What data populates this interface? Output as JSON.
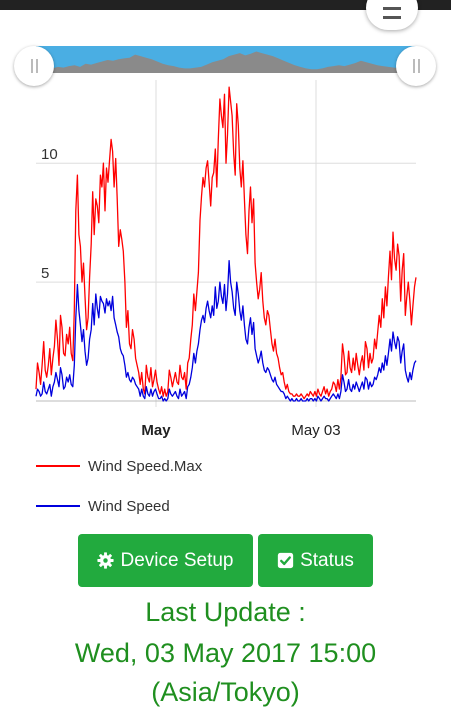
{
  "chart_data": {
    "type": "line",
    "x_tick_labels": [
      {
        "label": "May",
        "bold": true
      },
      {
        "label": "May 03",
        "bold": false
      }
    ],
    "y_tick_labels": [
      "5",
      "10"
    ],
    "ylim": [
      0,
      13.5
    ],
    "grid": true,
    "legend_placement": "bottom",
    "series": [
      {
        "name": "Wind Speed.Max",
        "color": "#ff0000",
        "values": [
          0.5,
          1.6,
          1.2,
          0.7,
          1.5,
          2.5,
          1.3,
          1.0,
          1.5,
          2.2,
          1.1,
          1.8,
          2.3,
          3.4,
          2.6,
          1.5,
          3.6,
          3.1,
          2.0,
          1.9,
          2.8,
          2.4,
          3.1,
          2.0,
          1.7,
          3.8,
          8.0,
          9.5,
          7.0,
          6.5,
          5.0,
          5.8,
          4.4,
          3.0,
          3.5,
          5.2,
          6.6,
          8.8,
          7.0,
          8.5,
          8.2,
          7.5,
          9.5,
          9.0,
          10.0,
          8.0,
          9.8,
          9.2,
          10.1,
          11.0,
          10.5,
          9.0,
          10.2,
          8.5,
          6.5,
          7.2,
          6.8,
          6.3,
          5.0,
          3.1,
          3.8,
          2.4,
          2.2,
          3.0,
          2.6,
          1.8,
          1.5,
          1.2,
          0.7,
          1.2,
          0.5,
          0.3,
          1.5,
          1.0,
          0.8,
          1.4,
          0.6,
          0.9,
          1.3,
          0.8,
          0.5,
          0.3,
          0.6,
          0.2,
          0.5,
          0.2,
          0.4,
          1.3,
          1.0,
          0.6,
          0.9,
          1.2,
          0.8,
          0.7,
          1.5,
          1.0,
          0.9,
          1.2,
          0.5,
          1.6,
          1.8,
          2.6,
          3.2,
          4.5,
          3.8,
          4.6,
          5.4,
          7.6,
          8.6,
          9.4,
          9.0,
          9.8,
          10.1,
          9.2,
          8.2,
          9.4,
          9.6,
          10.6,
          9.0,
          11.0,
          12.7,
          12.0,
          11.5,
          12.9,
          10.0,
          11.2,
          13.2,
          12.6,
          12.0,
          10.4,
          9.5,
          12.5,
          11.6,
          9.8,
          9.0,
          10.1,
          8.5,
          7.0,
          6.2,
          8.0,
          9.0,
          7.5,
          8.5,
          5.8,
          5.0,
          4.3,
          4.7,
          5.4,
          4.2,
          3.5,
          3.2,
          3.8,
          3.6,
          3.0,
          2.4,
          2.1,
          2.6,
          2.0,
          1.8,
          1.4,
          1.1,
          1.2,
          0.8,
          0.5,
          0.7,
          0.4,
          0.3,
          0.3,
          0.2,
          0.2,
          0.3,
          0.2,
          0.2,
          0.3,
          0.2,
          0.1,
          0.2,
          0.3,
          0.2,
          0.4,
          0.3,
          0.2,
          0.4,
          0.2,
          0.5,
          0.3,
          0.2,
          0.4,
          0.6,
          0.3,
          0.5,
          0.2,
          0.4,
          0.5,
          0.8,
          0.7,
          0.4,
          0.9,
          0.5,
          1.0,
          2.4,
          1.9,
          1.1,
          1.2,
          2.1,
          1.4,
          1.2,
          1.8,
          1.3,
          2.0,
          1.5,
          1.1,
          1.6,
          1.9,
          1.3,
          2.5,
          2.2,
          1.4,
          2.0,
          1.6,
          1.8,
          2.6,
          2.2,
          2.9,
          3.6,
          3.1,
          4.3,
          3.5,
          4.8,
          4.0,
          5.2,
          6.3,
          5.1,
          7.1,
          6.0,
          5.5,
          6.6,
          6.1,
          4.2,
          5.5,
          6.2,
          3.6,
          4.4,
          5.0,
          4.2,
          3.2,
          4.0,
          4.8,
          5.2
        ]
      },
      {
        "name": "Wind Speed",
        "color": "#0000dd",
        "values": [
          0.2,
          0.5,
          0.4,
          0.2,
          0.3,
          0.8,
          0.4,
          0.3,
          0.5,
          0.7,
          0.2,
          0.6,
          0.8,
          1.2,
          0.9,
          0.6,
          1.4,
          1.1,
          0.5,
          0.6,
          1.0,
          0.8,
          1.1,
          0.7,
          0.6,
          1.5,
          3.5,
          4.9,
          3.8,
          3.2,
          2.5,
          3.0,
          2.1,
          1.5,
          1.8,
          2.6,
          3.0,
          4.1,
          3.2,
          4.5,
          3.9,
          3.5,
          4.4,
          4.2,
          4.1,
          3.7,
          4.3,
          4.0,
          4.2,
          3.8,
          4.4,
          3.5,
          3.2,
          2.9,
          2.7,
          2.2,
          2.0,
          1.9,
          1.5,
          1.0,
          1.2,
          0.9,
          0.8,
          1.0,
          0.9,
          0.7,
          0.6,
          0.5,
          0.2,
          0.5,
          0.2,
          0.1,
          0.6,
          0.3,
          0.2,
          0.5,
          0.2,
          0.4,
          0.5,
          0.3,
          0.1,
          0.1,
          0.2,
          0.0,
          0.1,
          0.0,
          0.1,
          0.5,
          0.3,
          0.2,
          0.3,
          0.4,
          0.2,
          0.1,
          0.5,
          0.2,
          0.3,
          0.4,
          0.1,
          0.6,
          0.7,
          1.0,
          1.4,
          2.0,
          1.6,
          2.1,
          2.4,
          3.0,
          3.4,
          3.6,
          3.3,
          3.9,
          4.2,
          3.8,
          3.5,
          4.0,
          3.6,
          4.8,
          3.9,
          4.2,
          5.0,
          4.4,
          4.1,
          4.9,
          3.8,
          4.5,
          5.9,
          5.0,
          4.6,
          3.9,
          3.6,
          5.0,
          4.5,
          3.8,
          3.4,
          4.0,
          3.2,
          2.6,
          2.4,
          3.1,
          3.5,
          2.8,
          3.3,
          2.2,
          1.9,
          1.6,
          1.8,
          2.1,
          1.6,
          1.3,
          1.2,
          1.4,
          1.3,
          1.1,
          0.9,
          0.8,
          1.0,
          0.7,
          0.6,
          0.5,
          0.4,
          0.4,
          0.3,
          0.1,
          0.2,
          0.1,
          0.0,
          0.1,
          0.0,
          0.0,
          0.1,
          0.0,
          0.0,
          0.1,
          0.0,
          0.0,
          0.0,
          0.1,
          0.0,
          0.1,
          0.1,
          0.0,
          0.1,
          0.0,
          0.2,
          0.1,
          0.0,
          0.1,
          0.2,
          0.1,
          0.1,
          0.0,
          0.1,
          0.2,
          0.3,
          0.2,
          0.1,
          0.3,
          0.1,
          0.4,
          1.1,
          0.8,
          0.4,
          0.5,
          0.9,
          0.5,
          0.4,
          0.7,
          0.5,
          0.8,
          0.6,
          0.4,
          0.6,
          0.8,
          0.5,
          1.0,
          0.9,
          0.5,
          0.8,
          0.6,
          0.7,
          1.0,
          0.9,
          1.1,
          1.4,
          1.2,
          1.6,
          1.3,
          1.9,
          1.5,
          2.0,
          2.6,
          2.1,
          2.9,
          2.5,
          2.2,
          2.7,
          2.5,
          1.6,
          2.1,
          2.4,
          1.3,
          1.0,
          0.8,
          1.2,
          0.9,
          1.3,
          1.6,
          1.7
        ]
      }
    ],
    "navigator_values": [
      0.4,
      0.7,
      0.5,
      0.6,
      0.8,
      0.7,
      0.9,
      1.0,
      0.8,
      1.2,
      1.1,
      1.3,
      1.5,
      1.7,
      1.6,
      1.8,
      1.9,
      2.0,
      2.4,
      2.2,
      2.0,
      1.8,
      1.5,
      1.2,
      1.0,
      0.9,
      0.7,
      0.6,
      0.6,
      0.7,
      0.8,
      1.1,
      1.4,
      1.6,
      1.8,
      2.2,
      2.4,
      2.6,
      2.3,
      2.5,
      2.8,
      2.6,
      2.4,
      2.2,
      1.9,
      1.6,
      1.3,
      1.0,
      0.8,
      0.6,
      0.5,
      0.5,
      0.6,
      0.8,
      0.9,
      1.0,
      0.9,
      1.1,
      1.3,
      1.6,
      1.4,
      1.2,
      1.0,
      0.9,
      0.8,
      0.7,
      0.6,
      0.8,
      1.0,
      0.9
    ]
  },
  "buttons": {
    "device_setup": "Device Setup",
    "status": "Status"
  },
  "update": {
    "line1": "Last Update :",
    "line2": "Wed, 03 May 2017 15:00",
    "line3": "(Asia/Tokyo)"
  },
  "icons": {
    "device_setup": "gear-icon",
    "status": "check-square-icon",
    "menu": "hamburger-menu-icon"
  },
  "colors": {
    "button_bg": "#22aa3e",
    "update_text": "#1f8f1f",
    "navigator_bg": "#4aaee3"
  }
}
